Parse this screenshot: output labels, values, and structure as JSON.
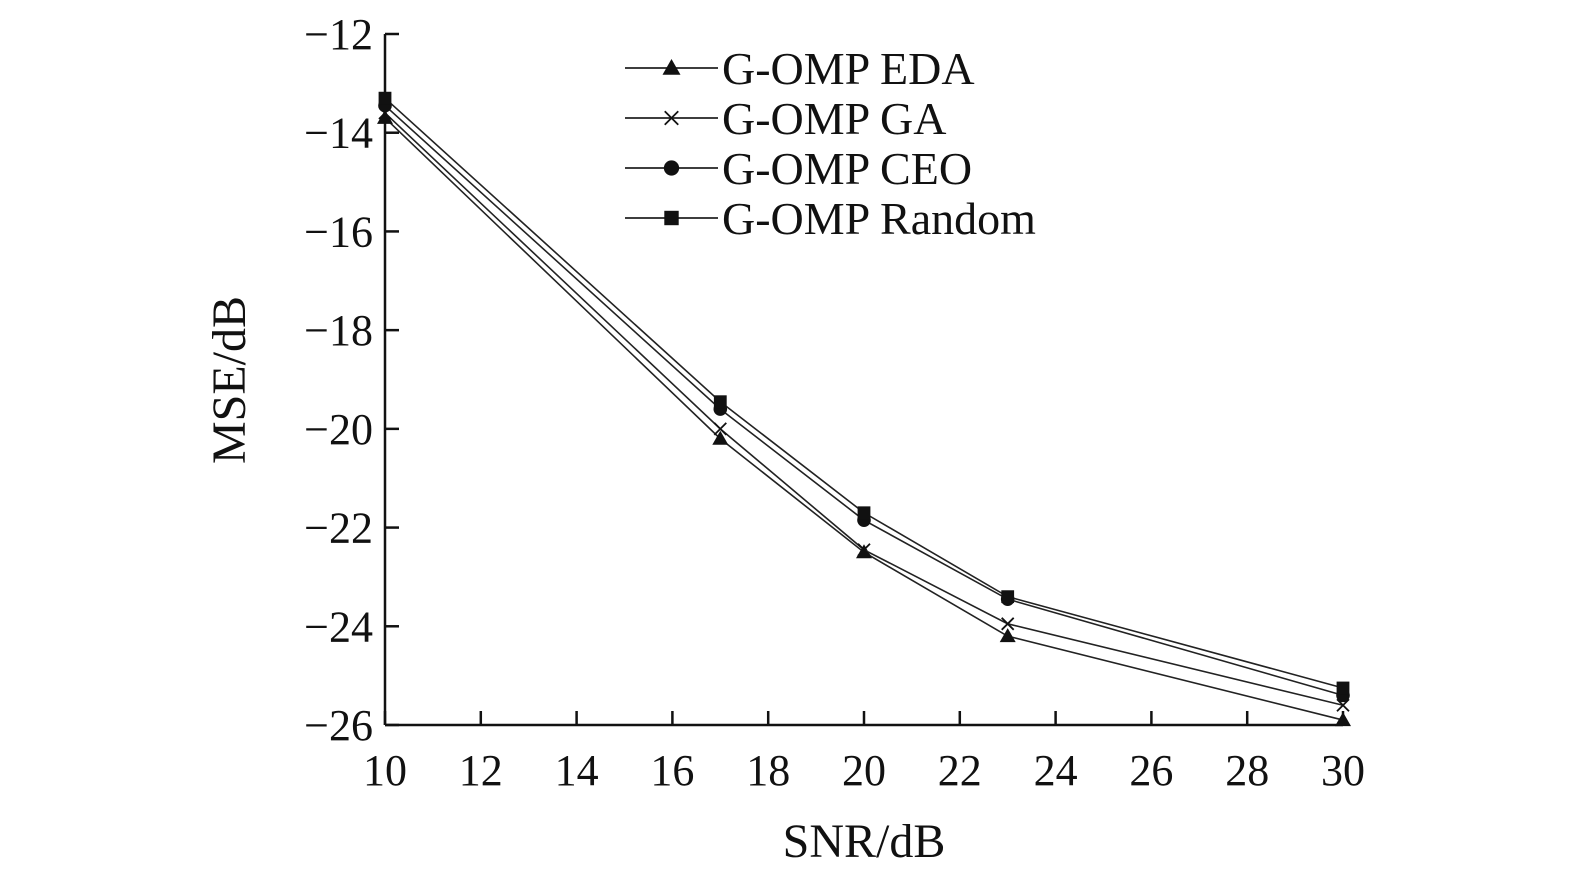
{
  "chart_data": {
    "type": "line",
    "title": "",
    "xlabel": "SNR/dB",
    "ylabel": "MSE/dB",
    "xlim": [
      10,
      30
    ],
    "ylim": [
      -26,
      -12
    ],
    "xticks": [
      10,
      12,
      14,
      16,
      18,
      20,
      22,
      24,
      26,
      28,
      30
    ],
    "yticks": [
      -12,
      -14,
      -16,
      -18,
      -20,
      -22,
      -24,
      -26
    ],
    "ytick_labels": [
      "−12",
      "−14",
      "−16",
      "−18",
      "−20",
      "−22",
      "−24",
      "−26"
    ],
    "x": [
      10,
      17,
      20,
      23,
      30
    ],
    "grid": false,
    "legend_position": "top-center",
    "series": [
      {
        "name": "G-OMP EDA",
        "marker": "triangle",
        "values": [
          -13.7,
          -20.2,
          -22.5,
          -24.2,
          -25.9
        ]
      },
      {
        "name": "G-OMP GA",
        "marker": "x",
        "values": [
          -13.6,
          -20.0,
          -22.45,
          -23.95,
          -25.6
        ]
      },
      {
        "name": "G-OMP CEO",
        "marker": "circle",
        "values": [
          -13.45,
          -19.6,
          -21.85,
          -23.45,
          -25.4
        ]
      },
      {
        "name": "G-OMP Random",
        "marker": "square",
        "values": [
          -13.3,
          -19.45,
          -21.7,
          -23.4,
          -25.25
        ]
      }
    ],
    "colors": {
      "line": "#222222",
      "marker": "#111111"
    }
  }
}
